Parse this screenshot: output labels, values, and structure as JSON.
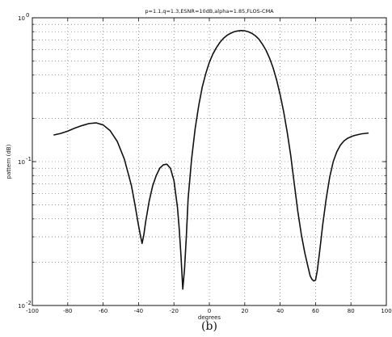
{
  "chart_data": {
    "type": "line",
    "title": "p=1.1,q=1.3,ESNR=10dB,alpha=1.85,FLOS-CMA",
    "xlabel": "degrees",
    "ylabel": "pattern (dB)",
    "panel_label": "(b)",
    "xlim": [
      -100,
      100
    ],
    "ylim": [
      0.01,
      1
    ],
    "yscale": "log",
    "grid": true,
    "x_ticks": [
      -100,
      -80,
      -60,
      -40,
      -20,
      0,
      20,
      40,
      60,
      80,
      100
    ],
    "x_tick_labels": [
      "-100",
      "-80",
      "-60",
      "-40",
      "-20",
      "0",
      "20",
      "40",
      "60",
      "80",
      "100"
    ],
    "y_ticks": [
      0.01,
      0.1,
      1
    ],
    "y_tick_labels": [
      "10",
      "10",
      "10"
    ],
    "y_tick_exponents": [
      "-2",
      "-1",
      "0"
    ],
    "series": [
      {
        "x": [
          -88,
          -84,
          -80,
          -76,
          -72,
          -68,
          -64,
          -60,
          -56,
          -52,
          -48,
          -44,
          -42,
          -40,
          -39,
          -38,
          -37,
          -36,
          -34,
          -32,
          -30,
          -28,
          -26,
          -24,
          -22,
          -20,
          -18,
          -17,
          -16,
          -15,
          -14,
          -13,
          -12,
          -10,
          -8,
          -6,
          -4,
          -2,
          0,
          2,
          4,
          6,
          8,
          10,
          12,
          14,
          16,
          18,
          20,
          22,
          24,
          26,
          28,
          30,
          32,
          34,
          36,
          38,
          40,
          42,
          44,
          46,
          48,
          50,
          52,
          54,
          56,
          57,
          58,
          59,
          60,
          61,
          62,
          63,
          64,
          66,
          68,
          70,
          72,
          74,
          76,
          78,
          80,
          82,
          84,
          86,
          88,
          90
        ],
        "y": [
          0.153,
          0.157,
          0.163,
          0.171,
          0.178,
          0.184,
          0.186,
          0.18,
          0.164,
          0.138,
          0.104,
          0.068,
          0.05,
          0.036,
          0.031,
          0.027,
          0.031,
          0.038,
          0.053,
          0.068,
          0.08,
          0.09,
          0.095,
          0.096,
          0.09,
          0.074,
          0.048,
          0.034,
          0.022,
          0.013,
          0.018,
          0.03,
          0.055,
          0.105,
          0.17,
          0.245,
          0.33,
          0.41,
          0.49,
          0.56,
          0.62,
          0.675,
          0.72,
          0.755,
          0.78,
          0.8,
          0.81,
          0.815,
          0.812,
          0.8,
          0.78,
          0.75,
          0.71,
          0.655,
          0.595,
          0.525,
          0.45,
          0.37,
          0.292,
          0.222,
          0.16,
          0.11,
          0.07,
          0.045,
          0.031,
          0.023,
          0.018,
          0.016,
          0.0152,
          0.0148,
          0.015,
          0.0175,
          0.022,
          0.028,
          0.036,
          0.055,
          0.078,
          0.1,
          0.117,
          0.13,
          0.139,
          0.145,
          0.149,
          0.152,
          0.154,
          0.156,
          0.157,
          0.158
        ]
      }
    ]
  }
}
